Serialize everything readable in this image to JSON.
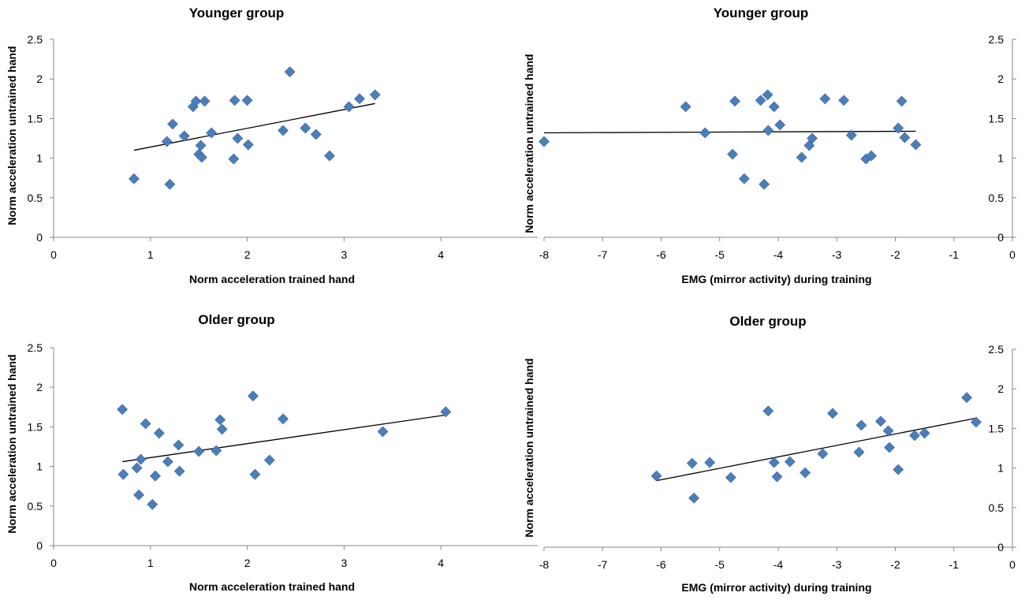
{
  "colors": {
    "marker": "#4a7ebb",
    "trendline": "#000000",
    "axis": "#868686"
  },
  "chart_data": [
    {
      "type": "scatter",
      "title": "Younger group",
      "xlabel": "Norm acceleration  trained hand",
      "ylabel": "Norm acceleration  untrained hand",
      "xlim": [
        0,
        5
      ],
      "ylim": [
        0,
        2.5
      ],
      "xticks": [
        "0",
        "1",
        "2",
        "3",
        "4"
      ],
      "yticks": [
        "0",
        "0.5",
        "1",
        "1.5",
        "2",
        "2.5"
      ],
      "y_axis_side": "left",
      "points": [
        [
          0.83,
          0.74
        ],
        [
          1.17,
          1.21
        ],
        [
          1.2,
          0.67
        ],
        [
          1.23,
          1.43
        ],
        [
          1.35,
          1.28
        ],
        [
          1.44,
          1.65
        ],
        [
          1.47,
          1.72
        ],
        [
          1.5,
          1.05
        ],
        [
          1.52,
          1.16
        ],
        [
          1.53,
          1.01
        ],
        [
          1.56,
          1.72
        ],
        [
          1.63,
          1.32
        ],
        [
          1.86,
          0.99
        ],
        [
          1.87,
          1.73
        ],
        [
          1.9,
          1.25
        ],
        [
          2.0,
          1.73
        ],
        [
          2.01,
          1.17
        ],
        [
          2.37,
          1.35
        ],
        [
          2.44,
          2.09
        ],
        [
          2.6,
          1.38
        ],
        [
          2.71,
          1.3
        ],
        [
          2.85,
          1.03
        ],
        [
          3.05,
          1.65
        ],
        [
          3.16,
          1.75
        ],
        [
          3.32,
          1.8
        ]
      ],
      "trendline": [
        [
          0.83,
          1.1
        ],
        [
          3.32,
          1.69
        ]
      ]
    },
    {
      "type": "scatter",
      "title": "Younger group",
      "xlabel": "EMG  (mirror activity)  during training",
      "ylabel": "Norm acceleration  untrained hand",
      "xlim": [
        -8,
        0
      ],
      "ylim": [
        0,
        2.5
      ],
      "xticks": [
        "-8",
        "-7",
        "-6",
        "-5",
        "-4",
        "-3",
        "-2",
        "-1",
        "0"
      ],
      "yticks": [
        "0",
        "0.5",
        "1",
        "1.5",
        "2",
        "2.5"
      ],
      "y_axis_side": "right",
      "points": [
        [
          -8.0,
          1.21
        ],
        [
          -5.58,
          1.65
        ],
        [
          -5.25,
          1.32
        ],
        [
          -4.78,
          1.05
        ],
        [
          -4.74,
          1.72
        ],
        [
          -4.58,
          0.74
        ],
        [
          -4.3,
          1.73
        ],
        [
          -4.24,
          0.67
        ],
        [
          -4.18,
          1.8
        ],
        [
          -4.17,
          1.35
        ],
        [
          -4.07,
          1.65
        ],
        [
          -3.97,
          1.42
        ],
        [
          -3.6,
          1.01
        ],
        [
          -3.47,
          1.16
        ],
        [
          -3.42,
          1.25
        ],
        [
          -3.2,
          1.75
        ],
        [
          -2.88,
          1.73
        ],
        [
          -2.75,
          1.29
        ],
        [
          -2.5,
          0.99
        ],
        [
          -2.41,
          1.03
        ],
        [
          -1.95,
          1.38
        ],
        [
          -1.89,
          1.72
        ],
        [
          -1.84,
          1.26
        ],
        [
          -1.65,
          1.17
        ]
      ],
      "trendline": [
        [
          -8.0,
          1.32
        ],
        [
          -1.65,
          1.34
        ]
      ]
    },
    {
      "type": "scatter",
      "title": "Older group",
      "xlabel": "Norm acceleration  trained hand",
      "ylabel": "Norm acceleration  untrained hand",
      "xlim": [
        0,
        5
      ],
      "ylim": [
        0,
        2.5
      ],
      "xticks": [
        "0",
        "1",
        "2",
        "3",
        "4"
      ],
      "yticks": [
        "0",
        "0.5",
        "1",
        "1.5",
        "2",
        "2.5"
      ],
      "y_axis_side": "left",
      "points": [
        [
          0.71,
          1.72
        ],
        [
          0.72,
          0.9
        ],
        [
          0.86,
          0.98
        ],
        [
          0.88,
          0.64
        ],
        [
          0.9,
          1.09
        ],
        [
          0.95,
          1.54
        ],
        [
          1.02,
          0.52
        ],
        [
          1.05,
          0.88
        ],
        [
          1.09,
          1.42
        ],
        [
          1.18,
          1.06
        ],
        [
          1.29,
          1.27
        ],
        [
          1.3,
          0.94
        ],
        [
          1.5,
          1.19
        ],
        [
          1.68,
          1.2
        ],
        [
          1.72,
          1.59
        ],
        [
          1.74,
          1.47
        ],
        [
          2.06,
          1.89
        ],
        [
          2.08,
          0.9
        ],
        [
          2.23,
          1.08
        ],
        [
          2.37,
          1.6
        ],
        [
          3.4,
          1.44
        ],
        [
          4.05,
          1.69
        ]
      ],
      "trendline": [
        [
          0.71,
          1.06
        ],
        [
          4.05,
          1.65
        ]
      ]
    },
    {
      "type": "scatter",
      "title": "Older group",
      "xlabel": "EMG  (mirror activity)  during training",
      "ylabel": "Norm acceleration  untrained hand",
      "xlim": [
        -8,
        0
      ],
      "ylim": [
        0,
        2.5
      ],
      "xticks": [
        "-8",
        "-7",
        "-6",
        "-5",
        "-4",
        "-3",
        "-2",
        "-1",
        "0"
      ],
      "yticks": [
        "0",
        "0.5",
        "1",
        "1.5",
        "2",
        "2.5"
      ],
      "y_axis_side": "right",
      "points": [
        [
          -6.08,
          0.9
        ],
        [
          -5.47,
          1.06
        ],
        [
          -5.44,
          0.62
        ],
        [
          -5.17,
          1.07
        ],
        [
          -4.81,
          0.88
        ],
        [
          -4.17,
          1.72
        ],
        [
          -4.07,
          1.07
        ],
        [
          -4.02,
          0.89
        ],
        [
          -3.8,
          1.08
        ],
        [
          -3.54,
          0.94
        ],
        [
          -3.24,
          1.18
        ],
        [
          -3.07,
          1.69
        ],
        [
          -2.62,
          1.2
        ],
        [
          -2.58,
          1.54
        ],
        [
          -2.25,
          1.59
        ],
        [
          -2.12,
          1.47
        ],
        [
          -2.1,
          1.26
        ],
        [
          -1.95,
          0.98
        ],
        [
          -1.67,
          1.41
        ],
        [
          -1.5,
          1.44
        ],
        [
          -0.78,
          1.89
        ],
        [
          -0.62,
          1.58
        ]
      ],
      "trendline": [
        [
          -6.08,
          0.84
        ],
        [
          -0.62,
          1.63
        ]
      ]
    }
  ]
}
